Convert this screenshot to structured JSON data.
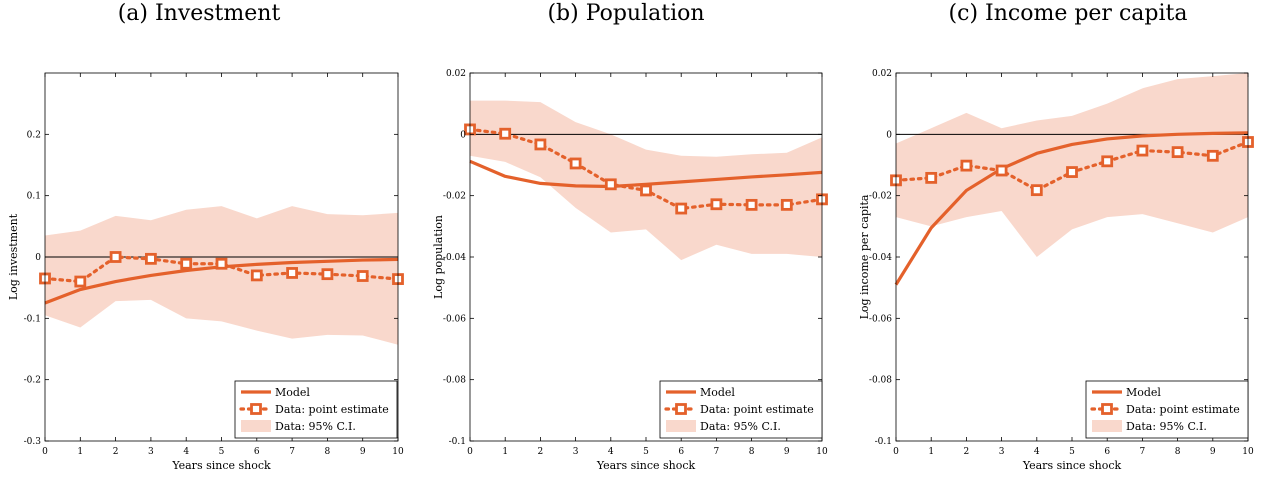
{
  "colors": {
    "accent": "#e4612b",
    "band": "#f9d8cc",
    "axis": "#000000"
  },
  "chart_data": [
    {
      "type": "line",
      "title": "(a) Investment",
      "xlabel": "Years since shock",
      "ylabel": "Log investment",
      "x": [
        0,
        1,
        2,
        3,
        4,
        5,
        6,
        7,
        8,
        9,
        10
      ],
      "xlim": [
        0,
        10
      ],
      "ylim": [
        -0.3,
        0.3
      ],
      "xticks": [
        0,
        1,
        2,
        3,
        4,
        5,
        6,
        7,
        8,
        9,
        10
      ],
      "yticks": [
        -0.3,
        -0.2,
        -0.1,
        0,
        0.1,
        0.2
      ],
      "ytick_labels": [
        "-0.3",
        "-0.2",
        "-0.1",
        "0",
        "0.1",
        "0.2"
      ],
      "zero_line": 0,
      "grid": false,
      "legend_position": "bottom-right",
      "series": [
        {
          "name": "Model",
          "style": "solid",
          "values": [
            -0.075,
            -0.053,
            -0.04,
            -0.03,
            -0.022,
            -0.016,
            -0.012,
            -0.009,
            -0.007,
            -0.005,
            -0.004
          ]
        },
        {
          "name": "Data: point estimate",
          "style": "dotted-square",
          "values": [
            -0.035,
            -0.04,
            0.0,
            -0.003,
            -0.011,
            -0.011,
            -0.03,
            -0.026,
            -0.028,
            -0.031,
            -0.036
          ]
        },
        {
          "name": "Data: 95% C.I.",
          "style": "band",
          "lower": [
            -0.095,
            -0.115,
            -0.072,
            -0.07,
            -0.1,
            -0.105,
            -0.12,
            -0.133,
            -0.127,
            -0.128,
            -0.143
          ],
          "upper": [
            0.035,
            0.043,
            0.067,
            0.06,
            0.077,
            0.083,
            0.063,
            0.083,
            0.07,
            0.068,
            0.072
          ]
        }
      ]
    },
    {
      "type": "line",
      "title": "(b) Population",
      "xlabel": "Years since shock",
      "ylabel": "Log population",
      "x": [
        0,
        1,
        2,
        3,
        4,
        5,
        6,
        7,
        8,
        9,
        10
      ],
      "xlim": [
        0,
        10
      ],
      "ylim": [
        -0.1,
        0.02
      ],
      "xticks": [
        0,
        1,
        2,
        3,
        4,
        5,
        6,
        7,
        8,
        9,
        10
      ],
      "yticks": [
        -0.1,
        -0.08,
        -0.06,
        -0.04,
        -0.02,
        0,
        0.02
      ],
      "ytick_labels": [
        "-0.1",
        "-0.08",
        "-0.06",
        "-0.04",
        "-0.02",
        "0",
        "0.02"
      ],
      "zero_line": 0,
      "grid": false,
      "legend_position": "bottom-right",
      "series": [
        {
          "name": "Model",
          "style": "solid",
          "values": [
            -0.0088,
            -0.0137,
            -0.016,
            -0.0168,
            -0.017,
            -0.0163,
            -0.0155,
            -0.0147,
            -0.0139,
            -0.0132,
            -0.0124
          ]
        },
        {
          "name": "Data: point estimate",
          "style": "dotted-square",
          "values": [
            0.0016,
            0.0002,
            -0.0033,
            -0.0095,
            -0.0163,
            -0.0183,
            -0.0242,
            -0.0228,
            -0.023,
            -0.023,
            -0.0212
          ]
        },
        {
          "name": "Data: 95% C.I.",
          "style": "band",
          "lower": [
            -0.007,
            -0.009,
            -0.014,
            -0.024,
            -0.032,
            -0.031,
            -0.041,
            -0.036,
            -0.039,
            -0.039,
            -0.04
          ],
          "upper": [
            0.011,
            0.011,
            0.0105,
            0.004,
            0.0,
            -0.005,
            -0.007,
            -0.0073,
            -0.0065,
            -0.006,
            -0.001
          ]
        }
      ]
    },
    {
      "type": "line",
      "title": "(c) Income per capita",
      "xlabel": "Years since shock",
      "ylabel": "Log income per capita",
      "x": [
        0,
        1,
        2,
        3,
        4,
        5,
        6,
        7,
        8,
        9,
        10
      ],
      "xlim": [
        0,
        10
      ],
      "ylim": [
        -0.1,
        0.02
      ],
      "xticks": [
        0,
        1,
        2,
        3,
        4,
        5,
        6,
        7,
        8,
        9,
        10
      ],
      "yticks": [
        -0.1,
        -0.08,
        -0.06,
        -0.04,
        -0.02,
        0,
        0.02
      ],
      "ytick_labels": [
        "-0.1",
        "-0.08",
        "-0.06",
        "-0.04",
        "-0.02",
        "0",
        "0.02"
      ],
      "zero_line": 0,
      "grid": false,
      "legend_position": "bottom-right",
      "series": [
        {
          "name": "Model",
          "style": "solid",
          "values": [
            -0.049,
            -0.0305,
            -0.0183,
            -0.0112,
            -0.0062,
            -0.0033,
            -0.0015,
            -0.0005,
            0.0,
            0.0003,
            0.0005
          ]
        },
        {
          "name": "Data: point estimate",
          "style": "dotted-square",
          "values": [
            -0.015,
            -0.0142,
            -0.0102,
            -0.0118,
            -0.0182,
            -0.0123,
            -0.0088,
            -0.0053,
            -0.0058,
            -0.007,
            -0.0025
          ]
        },
        {
          "name": "Data: 95% C.I.",
          "style": "band",
          "lower": [
            -0.027,
            -0.03,
            -0.027,
            -0.025,
            -0.04,
            -0.031,
            -0.027,
            -0.026,
            -0.029,
            -0.032,
            -0.027
          ],
          "upper": [
            -0.003,
            0.002,
            0.007,
            0.002,
            0.0045,
            0.006,
            0.01,
            0.015,
            0.018,
            0.019,
            0.021
          ]
        }
      ]
    }
  ]
}
